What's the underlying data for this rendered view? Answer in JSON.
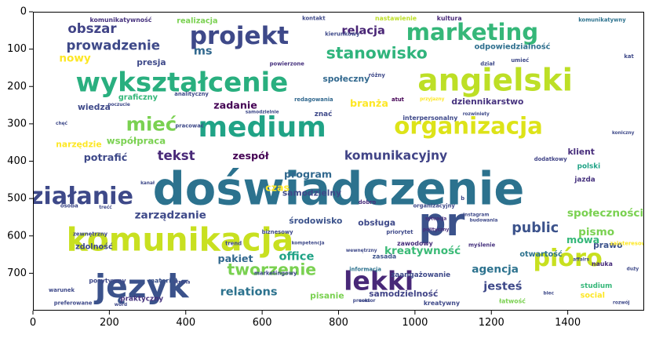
{
  "chart_data": {
    "type": "wordcloud",
    "title": "",
    "xlabel": "",
    "ylabel": "",
    "xlim": [
      0,
      1600
    ],
    "ylim": [
      800,
      0
    ],
    "xticks": [
      0,
      200,
      400,
      600,
      800,
      1000,
      1200,
      1400
    ],
    "yticks": [
      0,
      100,
      200,
      300,
      400,
      500,
      600,
      700
    ],
    "words": [
      {
        "text": "doświadczenie",
        "x": 800,
        "y": 475,
        "size": 118,
        "color": "#2c728e"
      },
      {
        "text": "komunikacja",
        "x": 385,
        "y": 610,
        "size": 84,
        "color": "#c8e020"
      },
      {
        "text": "język",
        "x": 285,
        "y": 735,
        "size": 84,
        "color": "#3b528b"
      },
      {
        "text": "angielski",
        "x": 1210,
        "y": 185,
        "size": 80,
        "color": "#bddf26"
      },
      {
        "text": "medium",
        "x": 600,
        "y": 310,
        "size": 74,
        "color": "#20a386"
      },
      {
        "text": "wykształcenie",
        "x": 390,
        "y": 190,
        "size": 70,
        "color": "#29af7f"
      },
      {
        "text": "organizacja",
        "x": 1140,
        "y": 305,
        "size": 60,
        "color": "#dde318"
      },
      {
        "text": "pr",
        "x": 1070,
        "y": 565,
        "size": 100,
        "color": "#3b528b"
      },
      {
        "text": "lekki",
        "x": 905,
        "y": 720,
        "size": 68,
        "color": "#482878"
      },
      {
        "text": "projekt",
        "x": 540,
        "y": 65,
        "size": 64,
        "color": "#3e4989"
      },
      {
        "text": "marketing",
        "x": 1150,
        "y": 55,
        "size": 60,
        "color": "#35b779"
      },
      {
        "text": "działanie",
        "x": 105,
        "y": 495,
        "size": 62,
        "color": "#3e4989"
      },
      {
        "text": "pióro",
        "x": 1400,
        "y": 660,
        "size": 62,
        "color": "#c8e020"
      },
      {
        "text": "stanowisko",
        "x": 900,
        "y": 110,
        "size": 42,
        "color": "#2fb47c"
      },
      {
        "text": "mieć",
        "x": 310,
        "y": 300,
        "size": 50,
        "color": "#7ad151"
      },
      {
        "text": "tworzenie",
        "x": 625,
        "y": 690,
        "size": 42,
        "color": "#7ad151"
      },
      {
        "text": "kreatywność",
        "x": 1020,
        "y": 640,
        "size": 28,
        "color": "#3aba76"
      },
      {
        "text": "komunikacyjny",
        "x": 950,
        "y": 385,
        "size": 32,
        "color": "#414487"
      },
      {
        "text": "public",
        "x": 1315,
        "y": 580,
        "size": 36,
        "color": "#3b528b"
      },
      {
        "text": "obszar",
        "x": 155,
        "y": 45,
        "size": 34,
        "color": "#414487"
      },
      {
        "text": "prowadzenie",
        "x": 210,
        "y": 90,
        "size": 34,
        "color": "#3e4989"
      },
      {
        "text": "ms",
        "x": 445,
        "y": 105,
        "size": 30,
        "color": "#31688e"
      },
      {
        "text": "nowy",
        "x": 110,
        "y": 125,
        "size": 28,
        "color": "#fde725"
      },
      {
        "text": "relacja",
        "x": 865,
        "y": 50,
        "size": 30,
        "color": "#482475"
      },
      {
        "text": "odpowiedzialność",
        "x": 1255,
        "y": 95,
        "size": 20,
        "color": "#2e6f8e"
      },
      {
        "text": "społeczny",
        "x": 820,
        "y": 180,
        "size": 22,
        "color": "#31688e"
      },
      {
        "text": "tekst",
        "x": 375,
        "y": 385,
        "size": 34,
        "color": "#482878"
      },
      {
        "text": "zadanie",
        "x": 530,
        "y": 250,
        "size": 26,
        "color": "#440154"
      },
      {
        "text": "współpraca",
        "x": 270,
        "y": 345,
        "size": 24,
        "color": "#7ad151"
      },
      {
        "text": "zespół",
        "x": 570,
        "y": 385,
        "size": 26,
        "color": "#440154"
      },
      {
        "text": "program",
        "x": 720,
        "y": 435,
        "size": 26,
        "color": "#31688e"
      },
      {
        "text": "zarządzanie",
        "x": 360,
        "y": 545,
        "size": 28,
        "color": "#3e4989"
      },
      {
        "text": "środowisko",
        "x": 740,
        "y": 560,
        "size": 22,
        "color": "#3b528b"
      },
      {
        "text": "obsługa",
        "x": 900,
        "y": 565,
        "size": 22,
        "color": "#3e4989"
      },
      {
        "text": "office",
        "x": 690,
        "y": 655,
        "size": 30,
        "color": "#20a386"
      },
      {
        "text": "pakiet",
        "x": 530,
        "y": 660,
        "size": 26,
        "color": "#31688e"
      },
      {
        "text": "relations",
        "x": 565,
        "y": 750,
        "size": 30,
        "color": "#2c728e"
      },
      {
        "text": "agencja",
        "x": 1210,
        "y": 690,
        "size": 28,
        "color": "#2c728e"
      },
      {
        "text": "jesteś",
        "x": 1230,
        "y": 735,
        "size": 30,
        "color": "#3e4989"
      },
      {
        "text": "samodzielność",
        "x": 970,
        "y": 755,
        "size": 22,
        "color": "#414487"
      },
      {
        "text": "pisanie",
        "x": 770,
        "y": 760,
        "size": 22,
        "color": "#7ad151"
      },
      {
        "text": "zaangażowanie",
        "x": 1015,
        "y": 705,
        "size": 18,
        "color": "#3e4989"
      },
      {
        "text": "branża",
        "x": 880,
        "y": 245,
        "size": 26,
        "color": "#fde725"
      },
      {
        "text": "dziennikarstwo",
        "x": 1190,
        "y": 240,
        "size": 22,
        "color": "#46327e"
      },
      {
        "text": "klient",
        "x": 1435,
        "y": 375,
        "size": 22,
        "color": "#472d7b"
      },
      {
        "text": "pismo",
        "x": 1475,
        "y": 590,
        "size": 28,
        "color": "#7ad151"
      },
      {
        "text": "mowa",
        "x": 1440,
        "y": 610,
        "size": 26,
        "color": "#35b779"
      },
      {
        "text": "społecznościowy",
        "x": 1530,
        "y": 540,
        "size": 28,
        "color": "#7ad151"
      },
      {
        "text": "prawo",
        "x": 1505,
        "y": 625,
        "size": 22,
        "color": "#3b528b"
      },
      {
        "text": "social",
        "x": 1465,
        "y": 760,
        "size": 20,
        "color": "#fde725"
      },
      {
        "text": "otwartość",
        "x": 1330,
        "y": 650,
        "size": 20,
        "color": "#2c728e"
      },
      {
        "text": "nauka",
        "x": 1490,
        "y": 675,
        "size": 16,
        "color": "#472d7b"
      },
      {
        "text": "studium",
        "x": 1475,
        "y": 735,
        "size": 18,
        "color": "#35b779"
      },
      {
        "text": "polski",
        "x": 1455,
        "y": 415,
        "size": 18,
        "color": "#20a386"
      },
      {
        "text": "jazda",
        "x": 1445,
        "y": 450,
        "size": 18,
        "color": "#46327e"
      },
      {
        "text": "dodatkowy",
        "x": 1355,
        "y": 395,
        "size": 14,
        "color": "#414487"
      },
      {
        "text": "wiedza",
        "x": 160,
        "y": 255,
        "size": 22,
        "color": "#3e4989"
      },
      {
        "text": "graficzny",
        "x": 275,
        "y": 230,
        "size": 20,
        "color": "#35b779"
      },
      {
        "text": "narzędzie",
        "x": 120,
        "y": 355,
        "size": 22,
        "color": "#fde725"
      },
      {
        "text": "potrafić",
        "x": 190,
        "y": 390,
        "size": 26,
        "color": "#3e4989"
      },
      {
        "text": "realizacja",
        "x": 430,
        "y": 25,
        "size": 20,
        "color": "#7ad151"
      },
      {
        "text": "komunikatywność",
        "x": 230,
        "y": 22,
        "size": 16,
        "color": "#46327e"
      },
      {
        "text": "kultura",
        "x": 1090,
        "y": 18,
        "size": 16,
        "color": "#482878"
      },
      {
        "text": "nastawienie",
        "x": 950,
        "y": 18,
        "size": 16,
        "color": "#bddf26"
      },
      {
        "text": "kontakt",
        "x": 735,
        "y": 18,
        "size": 14,
        "color": "#3e4989"
      },
      {
        "text": "komunikatywny",
        "x": 1490,
        "y": 22,
        "size": 14,
        "color": "#2c728e"
      },
      {
        "text": "czas",
        "x": 640,
        "y": 470,
        "size": 26,
        "color": "#fde725"
      },
      {
        "text": "samodzielny",
        "x": 730,
        "y": 485,
        "size": 22,
        "color": "#3e4989"
      },
      {
        "text": "zdolność",
        "x": 160,
        "y": 630,
        "size": 20,
        "color": "#3e4989"
      },
      {
        "text": "pozytywny",
        "x": 195,
        "y": 720,
        "size": 16,
        "color": "#3e4989"
      },
      {
        "text": "materiał",
        "x": 340,
        "y": 720,
        "size": 16,
        "color": "#3b528b"
      },
      {
        "text": "praktyczny",
        "x": 285,
        "y": 770,
        "size": 18,
        "color": "#46327e"
      },
      {
        "text": "zawodowy",
        "x": 1000,
        "y": 620,
        "size": 16,
        "color": "#472d7b"
      },
      {
        "text": "zasada",
        "x": 920,
        "y": 655,
        "size": 16,
        "color": "#3b528b"
      },
      {
        "text": "kreatywny",
        "x": 1070,
        "y": 780,
        "size": 16,
        "color": "#3e4989"
      },
      {
        "text": "łatwość",
        "x": 1255,
        "y": 775,
        "size": 16,
        "color": "#7ad151"
      },
      {
        "text": "interpersonalny",
        "x": 1040,
        "y": 285,
        "size": 16,
        "color": "#3e4989"
      },
      {
        "text": "redagowania",
        "x": 735,
        "y": 235,
        "size": 14,
        "color": "#31688e"
      },
      {
        "text": "znać",
        "x": 760,
        "y": 275,
        "size": 18,
        "color": "#3e4989"
      },
      {
        "text": "atut",
        "x": 955,
        "y": 235,
        "size": 14,
        "color": "#440154"
      },
      {
        "text": "przyjazny",
        "x": 1045,
        "y": 235,
        "size": 12,
        "color": "#fde725"
      },
      {
        "text": "dobro",
        "x": 875,
        "y": 510,
        "size": 14,
        "color": "#472d7b"
      },
      {
        "text": "organizacyjny",
        "x": 1050,
        "y": 520,
        "size": 14,
        "color": "#3e4989"
      },
      {
        "text": "biznesowy",
        "x": 640,
        "y": 590,
        "size": 14,
        "color": "#3e4989"
      },
      {
        "text": "trend",
        "x": 525,
        "y": 620,
        "size": 14,
        "color": "#3e4989"
      },
      {
        "text": "marketingowy",
        "x": 635,
        "y": 700,
        "size": 14,
        "color": "#3e4989"
      },
      {
        "text": "informacja",
        "x": 870,
        "y": 690,
        "size": 14,
        "color": "#2c728e"
      },
      {
        "text": "priorytet",
        "x": 960,
        "y": 590,
        "size": 14,
        "color": "#3e4989"
      },
      {
        "text": "myślenie",
        "x": 1175,
        "y": 625,
        "size": 14,
        "color": "#46327e"
      },
      {
        "text": "wewnętrzny",
        "x": 860,
        "y": 640,
        "size": 12,
        "color": "#3e4989"
      },
      {
        "text": "sytuacja",
        "x": 1055,
        "y": 555,
        "size": 12,
        "color": "#472d7b"
      },
      {
        "text": "polityczny",
        "x": 1055,
        "y": 585,
        "size": 12,
        "color": "#472d7b"
      },
      {
        "text": "zewnętrzny",
        "x": 150,
        "y": 595,
        "size": 14,
        "color": "#3e4989"
      },
      {
        "text": "osoba",
        "x": 95,
        "y": 520,
        "size": 14,
        "color": "#3e4989"
      },
      {
        "text": "trećć",
        "x": 190,
        "y": 525,
        "size": 12,
        "color": "#3e4989"
      },
      {
        "text": "warunek",
        "x": 75,
        "y": 745,
        "size": 14,
        "color": "#3e4989"
      },
      {
        "text": "preferowane",
        "x": 105,
        "y": 780,
        "size": 14,
        "color": "#3e4989"
      },
      {
        "text": "chęć",
        "x": 75,
        "y": 300,
        "size": 12,
        "color": "#3e4989"
      },
      {
        "text": "pracować",
        "x": 410,
        "y": 305,
        "size": 14,
        "color": "#3e4989"
      },
      {
        "text": "analityczny",
        "x": 415,
        "y": 220,
        "size": 14,
        "color": "#3e4989"
      },
      {
        "text": "presja",
        "x": 310,
        "y": 135,
        "size": 22,
        "color": "#3e4989"
      },
      {
        "text": "powierzone",
        "x": 665,
        "y": 140,
        "size": 14,
        "color": "#46327e"
      },
      {
        "text": "kierunkowy",
        "x": 810,
        "y": 60,
        "size": 14,
        "color": "#3e4989"
      },
      {
        "text": "dział",
        "x": 1190,
        "y": 140,
        "size": 14,
        "color": "#3e4989"
      },
      {
        "text": "umieć",
        "x": 1275,
        "y": 130,
        "size": 14,
        "color": "#3e4989"
      },
      {
        "text": "kat",
        "x": 1560,
        "y": 120,
        "size": 14,
        "color": "#3e4989"
      },
      {
        "text": "rozwój",
        "x": 1540,
        "y": 780,
        "size": 12,
        "color": "#3e4989"
      },
      {
        "text": "duży",
        "x": 1570,
        "y": 690,
        "size": 12,
        "color": "#3e4989"
      },
      {
        "text": "biec",
        "x": 1350,
        "y": 755,
        "size": 12,
        "color": "#3e4989"
      },
      {
        "text": "sektor",
        "x": 875,
        "y": 775,
        "size": 12,
        "color": "#3e4989"
      },
      {
        "text": "koniczny",
        "x": 1545,
        "y": 325,
        "size": 12,
        "color": "#3e4989"
      },
      {
        "text": "różny",
        "x": 900,
        "y": 170,
        "size": 14,
        "color": "#3e4989"
      },
      {
        "text": "poczucie",
        "x": 225,
        "y": 250,
        "size": 12,
        "color": "#3e4989"
      },
      {
        "text": "kanał",
        "x": 300,
        "y": 460,
        "size": 12,
        "color": "#3e4989"
      },
      {
        "text": "kompetencja",
        "x": 720,
        "y": 620,
        "size": 12,
        "color": "#3e4989"
      },
      {
        "text": "samodzielnie",
        "x": 600,
        "y": 270,
        "size": 12,
        "color": "#3e4989"
      },
      {
        "text": "rozwiniety",
        "x": 1160,
        "y": 275,
        "size": 12,
        "color": "#3e4989"
      },
      {
        "text": "b",
        "x": 1125,
        "y": 500,
        "size": 14,
        "color": "#3e4989"
      },
      {
        "text": "budowania",
        "x": 1180,
        "y": 560,
        "size": 12,
        "color": "#3e4989"
      },
      {
        "text": "instagram",
        "x": 1160,
        "y": 545,
        "size": 12,
        "color": "#3e4989"
      },
      {
        "text": "affairs",
        "x": 1435,
        "y": 665,
        "size": 12,
        "color": "#3e4989"
      },
      {
        "text": "zainteresowanie",
        "x": 1575,
        "y": 620,
        "size": 14,
        "color": "#fde725"
      },
      {
        "text": "word",
        "x": 230,
        "y": 785,
        "size": 12,
        "color": "#3e4989"
      },
      {
        "text": "strona",
        "x": 390,
        "y": 725,
        "size": 12,
        "color": "#3e4989"
      },
      {
        "text": "proces",
        "x": 860,
        "y": 775,
        "size": 12,
        "color": "#3e4989"
      }
    ]
  }
}
